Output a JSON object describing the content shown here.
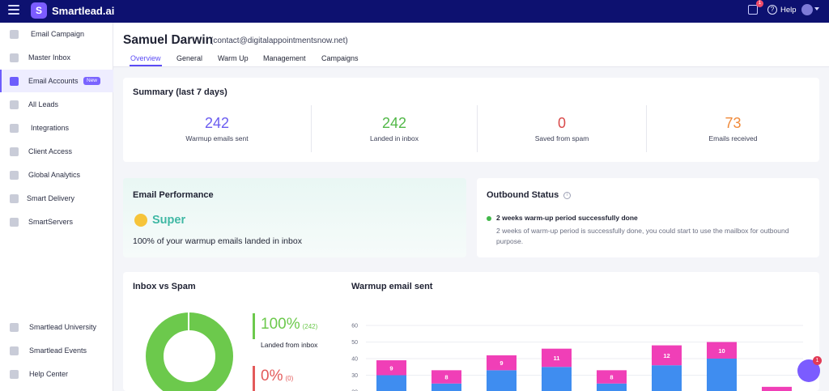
{
  "app": {
    "name": "Smartlead.ai",
    "help_label": "Help",
    "gift_count": "1",
    "brand_color": "#0d1170",
    "accent": "#5b4cf5"
  },
  "sidebar": {
    "items": [
      {
        "label": "Email Campaign",
        "icon": "send-icon"
      },
      {
        "label": "Master Inbox",
        "icon": "inbox-icon"
      },
      {
        "label": "Email Accounts",
        "icon": "mail-icon",
        "badge": "New",
        "active": true
      },
      {
        "label": "All Leads",
        "icon": "leads-icon"
      },
      {
        "label": "Integrations",
        "icon": "puzzle-icon"
      },
      {
        "label": "Client Access",
        "icon": "bolt-icon"
      },
      {
        "label": "Global Analytics",
        "icon": "chart-icon"
      },
      {
        "label": "Smart Delivery",
        "icon": "delivery-icon"
      },
      {
        "label": "SmartServers",
        "icon": "server-icon"
      }
    ],
    "footer_items": [
      {
        "label": "Smartlead University",
        "icon": "university-icon"
      },
      {
        "label": "Smartlead Events",
        "icon": "events-icon"
      },
      {
        "label": "Help Center",
        "icon": "help-center-icon"
      }
    ]
  },
  "header": {
    "name": "Samuel Darwin",
    "email": "(contact@digitalappointmentsnow.net)",
    "tabs": [
      "Overview",
      "General",
      "Warm Up",
      "Management",
      "Campaigns"
    ],
    "active_tab": "Overview"
  },
  "summary": {
    "title": "Summary (last 7 days)",
    "stats": [
      {
        "value": "242",
        "label": "Warmup emails sent",
        "color": "#6a5cf0"
      },
      {
        "value": "242",
        "label": "Landed in inbox",
        "color": "#52b848"
      },
      {
        "value": "0",
        "label": "Saved from spam",
        "color": "#d94b4b"
      },
      {
        "value": "73",
        "label": "Emails received",
        "color": "#f08a3a"
      }
    ]
  },
  "performance": {
    "title": "Email Performance",
    "rating": "Super",
    "description": "100% of your warmup emails landed in inbox"
  },
  "outbound": {
    "title": "Outbound Status",
    "status": "2 weeks warm-up period successfully done",
    "description": "2 weeks of warm-up period is successfully done, you could start to use the mailbox for outbound purpose."
  },
  "inbox_vs_spam": {
    "title": "Inbox vs Spam",
    "inbox_percent": "100%",
    "inbox_count": "(242)",
    "inbox_label": "Landed from inbox",
    "spam_percent": "0%",
    "spam_count": "(0)"
  },
  "chart_data": {
    "type": "bar",
    "title": "Warmup email sent",
    "y_ticks": [
      20,
      30,
      40,
      50,
      60
    ],
    "ylim": [
      20,
      60
    ],
    "series": [
      {
        "values": [
          30,
          25,
          33,
          35,
          25,
          36,
          40,
          19
        ],
        "color": "#3f8df0"
      },
      {
        "values": [
          9,
          8,
          9,
          11,
          8,
          12,
          10,
          4
        ],
        "color": "#f03fb7"
      }
    ],
    "data_labels": [
      "9",
      "8",
      "9",
      "11",
      "8",
      "12",
      "10",
      ""
    ]
  }
}
